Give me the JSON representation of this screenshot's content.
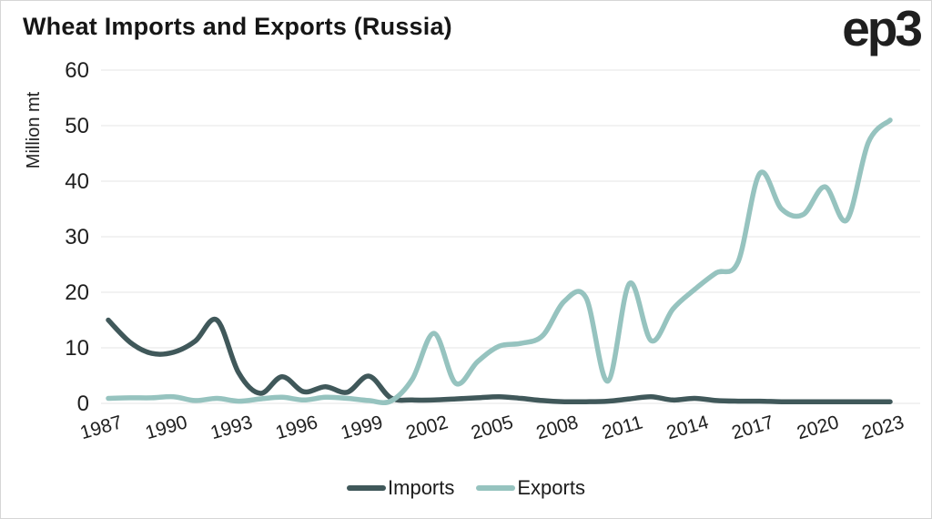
{
  "header": {
    "title": "Wheat Imports and Exports (Russia)",
    "logo": "ep3"
  },
  "legend": {
    "items": [
      {
        "label": "Imports",
        "color": "#40585a"
      },
      {
        "label": "Exports",
        "color": "#96c3bf"
      }
    ]
  },
  "chart_data": {
    "type": "line",
    "title": "Wheat Imports and Exports (Russia)",
    "xlabel": "",
    "ylabel": "Million mt",
    "ylim": [
      0,
      60
    ],
    "grid": "horizontal",
    "grid_color": "#e6e6e6",
    "text_color": "#1f1f1f",
    "legend_position": "bottom",
    "x": [
      1987,
      1988,
      1989,
      1990,
      1991,
      1992,
      1993,
      1994,
      1995,
      1996,
      1997,
      1998,
      1999,
      2000,
      2001,
      2002,
      2003,
      2004,
      2005,
      2006,
      2007,
      2008,
      2009,
      2010,
      2011,
      2012,
      2013,
      2014,
      2015,
      2016,
      2017,
      2018,
      2019,
      2020,
      2021,
      2022,
      2023
    ],
    "xticks": [
      1987,
      1990,
      1993,
      1996,
      1999,
      2002,
      2005,
      2008,
      2011,
      2014,
      2017,
      2020,
      2023
    ],
    "yticks": [
      0,
      10,
      20,
      30,
      40,
      50,
      60
    ],
    "series": [
      {
        "name": "Imports",
        "color": "#40585a",
        "values": [
          15.0,
          11.0,
          9.0,
          9.2,
          11.2,
          15.0,
          5.5,
          1.8,
          4.8,
          2.1,
          3.0,
          2.0,
          4.9,
          1.0,
          0.6,
          0.6,
          0.8,
          1.0,
          1.2,
          0.9,
          0.5,
          0.3,
          0.3,
          0.4,
          0.8,
          1.2,
          0.6,
          0.9,
          0.5,
          0.4,
          0.4,
          0.3,
          0.3,
          0.3,
          0.3,
          0.3,
          0.3
        ]
      },
      {
        "name": "Exports",
        "color": "#96c3bf",
        "values": [
          0.9,
          1.0,
          1.0,
          1.2,
          0.5,
          0.9,
          0.4,
          0.8,
          1.1,
          0.6,
          1.1,
          0.9,
          0.5,
          0.4,
          4.4,
          12.6,
          3.6,
          7.5,
          10.3,
          10.8,
          12.2,
          18.4,
          19.0,
          4.0,
          21.6,
          11.3,
          17.0,
          20.5,
          23.5,
          25.5,
          41.4,
          35.0,
          34.0,
          39.0,
          33.0,
          47.0,
          51.0
        ]
      }
    ]
  }
}
